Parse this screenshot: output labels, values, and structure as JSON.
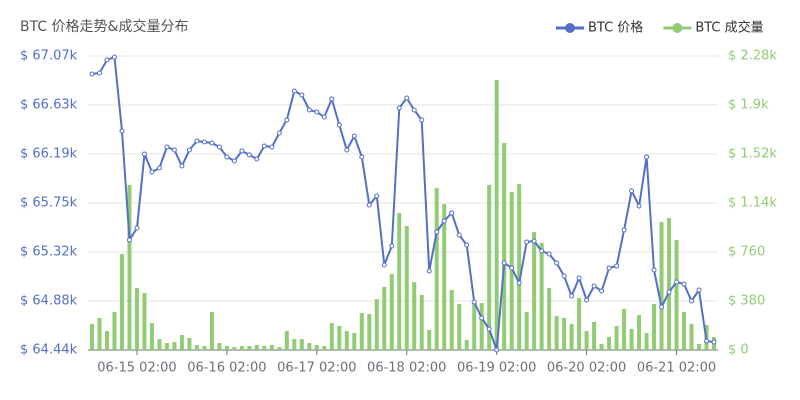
{
  "chart_data": {
    "type": "line",
    "title": "BTC 价格走势&成交量分布",
    "categories": [
      null,
      null,
      null,
      null,
      null,
      null,
      "06-15 02:00",
      null,
      null,
      null,
      null,
      null,
      null,
      null,
      null,
      null,
      null,
      null,
      "06-16 02:00",
      null,
      null,
      null,
      null,
      null,
      null,
      null,
      null,
      null,
      null,
      null,
      "06-17 02:00",
      null,
      null,
      null,
      null,
      null,
      null,
      null,
      null,
      null,
      null,
      null,
      "06-18 02:00",
      null,
      null,
      null,
      null,
      null,
      null,
      null,
      null,
      null,
      null,
      null,
      "06-19 02:00",
      null,
      null,
      null,
      null,
      null,
      null,
      null,
      null,
      null,
      null,
      null,
      "06-20 02:00",
      null,
      null,
      null,
      null,
      null,
      null,
      null,
      null,
      null,
      null,
      null,
      "06-21 02:00",
      null,
      null,
      null,
      null,
      null
    ],
    "series": [
      {
        "name": "BTC 价格",
        "type": "line",
        "color": "#5470c6",
        "values": [
          66909,
          66918,
          67034,
          67060,
          66399,
          65424,
          65531,
          66193,
          66032,
          66068,
          66256,
          66229,
          66086,
          66229,
          66310,
          66301,
          66292,
          66256,
          66167,
          66131,
          66220,
          66185,
          66149,
          66265,
          66256,
          66381,
          66498,
          66757,
          66721,
          66587,
          66569,
          66524,
          66685,
          66453,
          66229,
          66354,
          66167,
          65737,
          65818,
          65200,
          65370,
          66605,
          66694,
          66587,
          66498,
          65147,
          65496,
          65594,
          65666,
          65469,
          65379,
          64869,
          64726,
          64628,
          64440,
          65218,
          65174,
          65039,
          65406,
          65415,
          65326,
          65299,
          65218,
          65102,
          64923,
          65084,
          64887,
          65012,
          64968,
          65174,
          65191,
          65514,
          65863,
          65728,
          66167,
          65156,
          64825,
          64959,
          65048,
          65030,
          64878,
          64977,
          64520,
          64512
        ]
      },
      {
        "name": "BTC 成交量",
        "type": "bar",
        "axis": "y2",
        "color": "#91cc75",
        "values": [
          202,
          248,
          147,
          295,
          744,
          1280,
          481,
          442,
          209,
          85,
          54,
          62,
          116,
          93,
          39,
          31,
          295,
          54,
          31,
          23,
          31,
          31,
          39,
          31,
          39,
          23,
          147,
          85,
          85,
          54,
          39,
          31,
          209,
          186,
          147,
          132,
          287,
          279,
          395,
          489,
          589,
          1062,
          962,
          527,
          427,
          155,
          1256,
          1132,
          465,
          357,
          78,
          364,
          364,
          1280,
          2094,
          1605,
          1225,
          1287,
          295,
          915,
          830,
          481,
          264,
          248,
          202,
          403,
          147,
          217,
          47,
          101,
          186,
          318,
          163,
          271,
          132,
          357,
          993,
          1024,
          853,
          295,
          202,
          47,
          194,
          101
        ]
      }
    ],
    "ylim": [
      64440,
      67070
    ],
    "yticks": [
      {
        "value": 64440,
        "label": "$ 64.44k"
      },
      {
        "value": 64878.33,
        "label": "$ 64.88k"
      },
      {
        "value": 65316.67,
        "label": "$ 65.32k"
      },
      {
        "value": 65755,
        "label": "$ 65.75k"
      },
      {
        "value": 66193.33,
        "label": "$ 66.19k"
      },
      {
        "value": 66631.67,
        "label": "$ 66.63k"
      },
      {
        "value": 67070,
        "label": "$ 67.07k"
      }
    ],
    "y2lim": [
      0,
      2280
    ],
    "y2ticks": [
      {
        "value": 0,
        "label": "$ 0"
      },
      {
        "value": 380,
        "label": "$ 380"
      },
      {
        "value": 760,
        "label": "$ 760"
      },
      {
        "value": 1140,
        "label": "$ 1.14k"
      },
      {
        "value": 1520,
        "label": "$ 1.52k"
      },
      {
        "value": 1900,
        "label": "$ 1.9k"
      },
      {
        "value": 2280,
        "label": "$ 2.28k"
      }
    ],
    "grid": true,
    "legend": "top-right"
  }
}
